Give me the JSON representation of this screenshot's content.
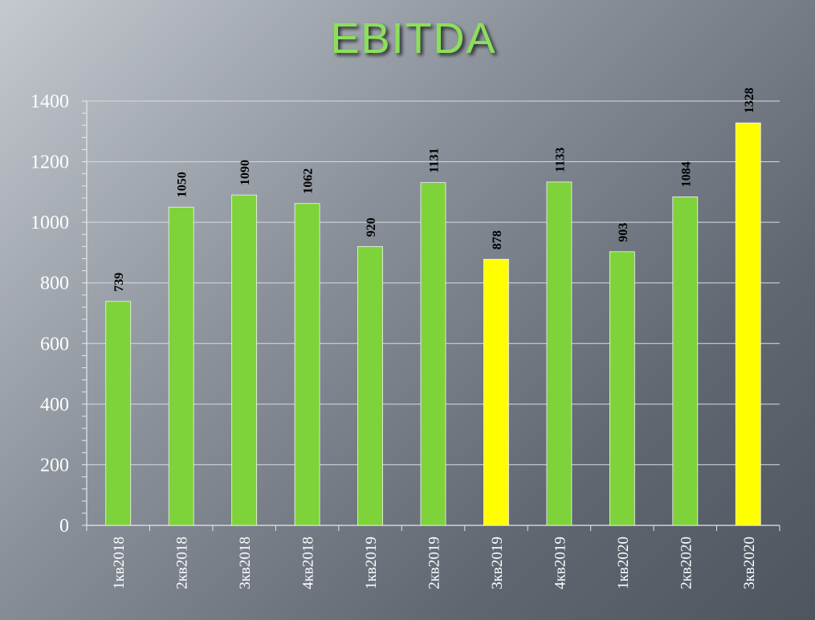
{
  "chart_data": {
    "type": "bar",
    "title": "EBITDA",
    "categories": [
      "1кв2018",
      "2кв2018",
      "3кв2018",
      "4кв2018",
      "1кв2019",
      "2кв2019",
      "3кв2019",
      "4кв2019",
      "1кв2020",
      "2кв2020",
      "3кв2020"
    ],
    "values": [
      739,
      1050,
      1090,
      1062,
      920,
      1131,
      878,
      1133,
      903,
      1084,
      1328
    ],
    "bar_colors": [
      "#7ed23a",
      "#7ed23a",
      "#7ed23a",
      "#7ed23a",
      "#7ed23a",
      "#7ed23a",
      "#ffff00",
      "#7ed23a",
      "#7ed23a",
      "#7ed23a",
      "#ffff00"
    ],
    "yticks": [
      0,
      200,
      400,
      600,
      800,
      1000,
      1200,
      1400
    ],
    "ylim": [
      0,
      1400
    ],
    "xlabel": "",
    "ylabel": "",
    "grid": true
  },
  "colors": {
    "title": "#8be05a",
    "gridline": "#d8dce0",
    "axis": "#e6e8ea"
  }
}
